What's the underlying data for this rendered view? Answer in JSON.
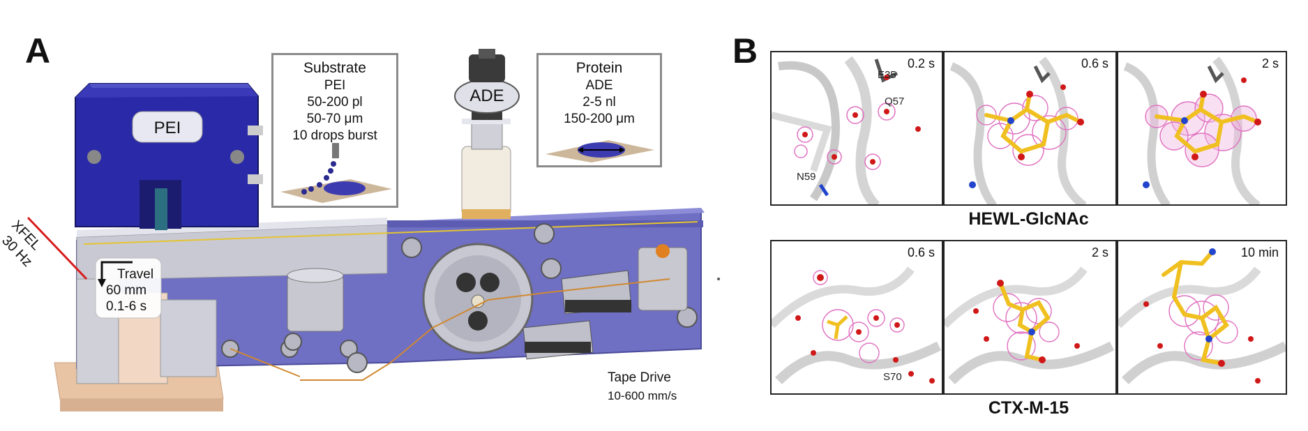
{
  "panel_a": {
    "letter": "A",
    "pei_label": "PEI",
    "ade_label": "ADE",
    "substrate_box": {
      "title": "Substrate",
      "lines": [
        "PEI",
        "50-200 pl",
        "50-70 μm",
        "10 drops burst"
      ]
    },
    "protein_box": {
      "title": "Protein",
      "lines": [
        "ADE",
        "2-5 nl",
        "150-200 μm"
      ]
    },
    "xfel": {
      "label": "XFEL",
      "rate": "30 Hz"
    },
    "travel": {
      "title": "Travel",
      "distance": "60 mm",
      "time": "0.1-6 s"
    },
    "tape_drive": {
      "title": "Tape Drive",
      "speed": "10-600 mm/s"
    }
  },
  "panel_b": {
    "letter": "B",
    "rows": [
      {
        "title": "HEWL-GlcNAc",
        "tiles": [
          {
            "time": "0.2 s",
            "labels": [
              "E35",
              "Q57",
              "N59"
            ]
          },
          {
            "time": "0.6 s",
            "labels": []
          },
          {
            "time": "2 s",
            "labels": []
          }
        ]
      },
      {
        "title": "CTX-M-15",
        "tiles": [
          {
            "time": "0.6 s",
            "labels": [
              "S70"
            ]
          },
          {
            "time": "2 s",
            "labels": []
          },
          {
            "time": "10 min",
            "labels": []
          }
        ]
      }
    ]
  },
  "colors": {
    "frame_blue": "#6f6fc4",
    "pei_blue": "#2a2aa8",
    "density_pink": "#e070c0",
    "ligand_yellow": "#f0c020",
    "water_red": "#d01818"
  }
}
